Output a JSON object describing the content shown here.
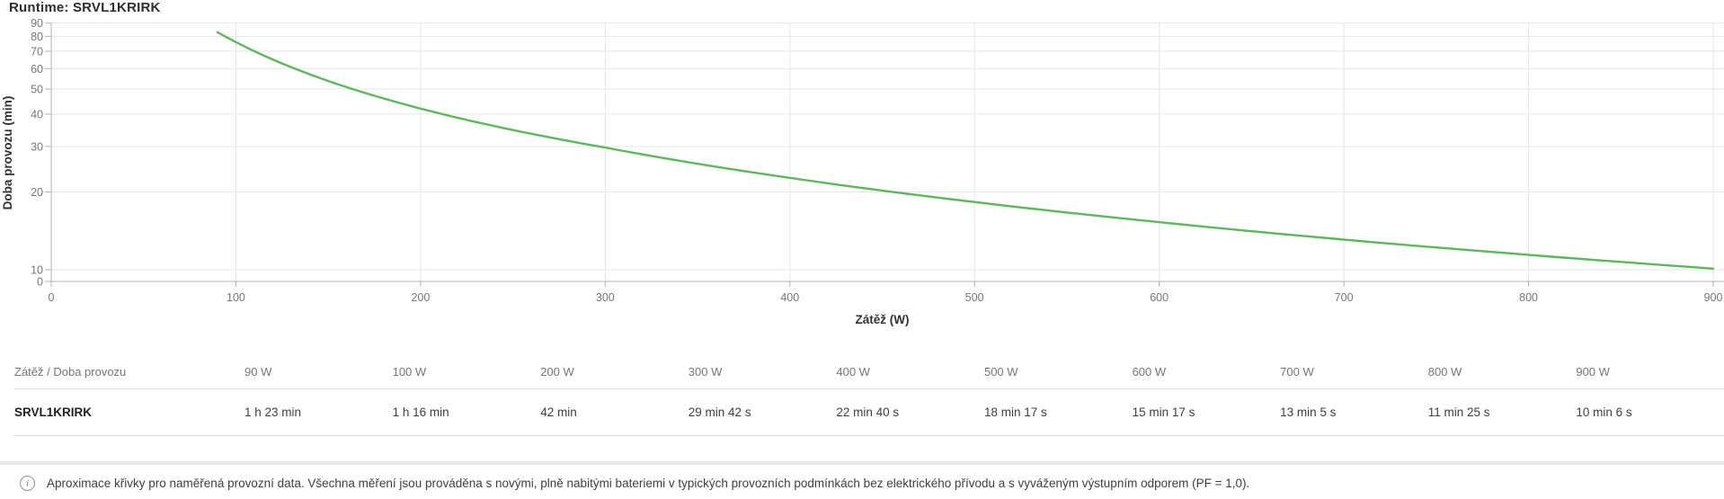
{
  "title": "Runtime: SRVL1KRIRK",
  "chart_data": {
    "type": "line",
    "title": "Runtime: SRVL1KRIRK",
    "xlabel": "Zátěž (W)",
    "ylabel": "Doba provozu (min)",
    "x_ticks": [
      0,
      100,
      200,
      300,
      400,
      500,
      600,
      700,
      800,
      900
    ],
    "y_ticks": [
      90,
      80,
      70,
      60,
      50,
      40,
      30,
      20,
      10,
      0
    ],
    "y_scale": "log",
    "xlim": [
      0,
      900
    ],
    "ylim": [
      10,
      96
    ],
    "grid": true,
    "legend": "none",
    "line_color": "#5cb85c",
    "series": [
      {
        "name": "SRVL1KRIRK",
        "x_watts": [
          90,
          100,
          200,
          300,
          400,
          500,
          600,
          700,
          800,
          900
        ],
        "y_minutes": [
          83,
          76,
          42,
          29.7,
          22.67,
          18.28,
          15.28,
          13.08,
          11.42,
          10.1
        ]
      }
    ]
  },
  "table": {
    "header": [
      "Zátěž / Doba provozu",
      "90 W",
      "100 W",
      "200 W",
      "300 W",
      "400 W",
      "500 W",
      "600 W",
      "700 W",
      "800 W",
      "900 W"
    ],
    "rows": [
      {
        "label": "SRVL1KRIRK",
        "values": [
          "1 h 23 min",
          "1 h 16 min",
          "42 min",
          "29 min 42 s",
          "22 min 40 s",
          "18 min 17 s",
          "15 min 17 s",
          "13 min 5 s",
          "11 min 25 s",
          "10 min 6 s"
        ]
      }
    ]
  },
  "footer": {
    "icon": "info-icon",
    "icon_glyph": "i",
    "note": "Aproximace křivky pro naměřená provozní data. Všechna měření jsou prováděna s novými, plně nabitými bateriemi v typických provozních podmínkách bez elektrického přívodu a s vyváženým výstupním odporem (PF = 1,0)."
  }
}
